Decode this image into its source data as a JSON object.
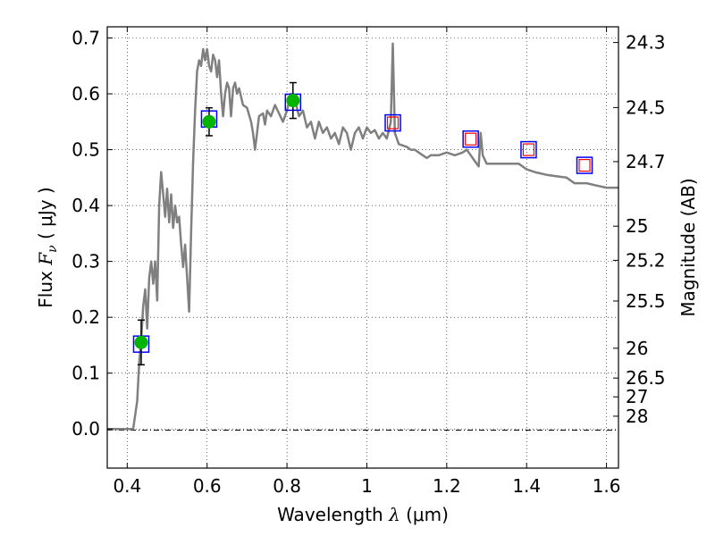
{
  "chart_data": {
    "type": "line",
    "xlabel": {
      "prefix": "Wavelength",
      "symbol": "λ",
      "unit": "(μm)"
    },
    "ylabel": {
      "prefix": "Flux",
      "symbol": "F",
      "sub": "ν",
      "unit": "( μJy )"
    },
    "y2label": "Magnitude (AB)",
    "xlim": [
      0.35,
      1.63
    ],
    "ylim": [
      -0.07,
      0.72
    ],
    "grid": true,
    "x_ticks": [
      {
        "value": 0.4,
        "label": "0.4"
      },
      {
        "value": 0.6,
        "label": "0.6"
      },
      {
        "value": 0.8,
        "label": "0.8"
      },
      {
        "value": 1.0,
        "label": "1"
      },
      {
        "value": 1.2,
        "label": "1.2"
      },
      {
        "value": 1.4,
        "label": "1.4"
      },
      {
        "value": 1.6,
        "label": "1.6"
      }
    ],
    "y_ticks": [
      {
        "value": 0.0,
        "label": "0.0"
      },
      {
        "value": 0.1,
        "label": "0.1"
      },
      {
        "value": 0.2,
        "label": "0.2"
      },
      {
        "value": 0.3,
        "label": "0.3"
      },
      {
        "value": 0.4,
        "label": "0.4"
      },
      {
        "value": 0.5,
        "label": "0.5"
      },
      {
        "value": 0.6,
        "label": "0.6"
      },
      {
        "value": 0.7,
        "label": "0.7"
      }
    ],
    "y2_ticks": [
      {
        "value": 24.3,
        "label": "24.3"
      },
      {
        "value": 24.5,
        "label": "24.5"
      },
      {
        "value": 24.7,
        "label": "24.7"
      },
      {
        "value": 25.0,
        "label": "25"
      },
      {
        "value": 25.2,
        "label": "25.2"
      },
      {
        "value": 25.5,
        "label": "25.5"
      },
      {
        "value": 26.0,
        "label": "26"
      },
      {
        "value": 26.5,
        "label": "26.5"
      },
      {
        "value": 27.0,
        "label": "27"
      },
      {
        "value": 28.0,
        "label": "28"
      }
    ],
    "model_spectrum": {
      "color": "#808080",
      "points": [
        [
          0.35,
          0.0
        ],
        [
          0.415,
          0.0
        ],
        [
          0.425,
          0.05
        ],
        [
          0.43,
          0.12
        ],
        [
          0.435,
          0.16
        ],
        [
          0.44,
          0.22
        ],
        [
          0.445,
          0.25
        ],
        [
          0.45,
          0.18
        ],
        [
          0.455,
          0.27
        ],
        [
          0.46,
          0.3
        ],
        [
          0.465,
          0.26
        ],
        [
          0.47,
          0.3
        ],
        [
          0.475,
          0.23
        ],
        [
          0.48,
          0.4
        ],
        [
          0.485,
          0.46
        ],
        [
          0.49,
          0.42
        ],
        [
          0.495,
          0.38
        ],
        [
          0.5,
          0.43
        ],
        [
          0.505,
          0.37
        ],
        [
          0.51,
          0.42
        ],
        [
          0.515,
          0.36
        ],
        [
          0.52,
          0.4
        ],
        [
          0.525,
          0.37
        ],
        [
          0.53,
          0.38
        ],
        [
          0.535,
          0.33
        ],
        [
          0.54,
          0.29
        ],
        [
          0.545,
          0.33
        ],
        [
          0.55,
          0.27
        ],
        [
          0.555,
          0.21
        ],
        [
          0.56,
          0.35
        ],
        [
          0.565,
          0.48
        ],
        [
          0.57,
          0.57
        ],
        [
          0.575,
          0.64
        ],
        [
          0.58,
          0.66
        ],
        [
          0.585,
          0.65
        ],
        [
          0.59,
          0.68
        ],
        [
          0.595,
          0.66
        ],
        [
          0.6,
          0.68
        ],
        [
          0.605,
          0.65
        ],
        [
          0.61,
          0.64
        ],
        [
          0.615,
          0.67
        ],
        [
          0.62,
          0.66
        ],
        [
          0.625,
          0.63
        ],
        [
          0.63,
          0.66
        ],
        [
          0.635,
          0.6
        ],
        [
          0.64,
          0.56
        ],
        [
          0.645,
          0.6
        ],
        [
          0.65,
          0.62
        ],
        [
          0.655,
          0.61
        ],
        [
          0.66,
          0.56
        ],
        [
          0.665,
          0.61
        ],
        [
          0.67,
          0.62
        ],
        [
          0.675,
          0.6
        ],
        [
          0.68,
          0.61
        ],
        [
          0.69,
          0.58
        ],
        [
          0.7,
          0.575
        ],
        [
          0.71,
          0.55
        ],
        [
          0.715,
          0.53
        ],
        [
          0.72,
          0.5
        ],
        [
          0.725,
          0.53
        ],
        [
          0.73,
          0.56
        ],
        [
          0.74,
          0.565
        ],
        [
          0.745,
          0.545
        ],
        [
          0.75,
          0.57
        ],
        [
          0.76,
          0.56
        ],
        [
          0.77,
          0.58
        ],
        [
          0.78,
          0.565
        ],
        [
          0.79,
          0.55
        ],
        [
          0.8,
          0.57
        ],
        [
          0.81,
          0.6
        ],
        [
          0.82,
          0.59
        ],
        [
          0.83,
          0.56
        ],
        [
          0.84,
          0.57
        ],
        [
          0.85,
          0.54
        ],
        [
          0.86,
          0.55
        ],
        [
          0.87,
          0.52
        ],
        [
          0.88,
          0.55
        ],
        [
          0.89,
          0.53
        ],
        [
          0.9,
          0.54
        ],
        [
          0.91,
          0.52
        ],
        [
          0.92,
          0.53
        ],
        [
          0.93,
          0.51
        ],
        [
          0.94,
          0.54
        ],
        [
          0.95,
          0.53
        ],
        [
          0.96,
          0.5
        ],
        [
          0.97,
          0.53
        ],
        [
          0.98,
          0.54
        ],
        [
          0.99,
          0.52
        ],
        [
          1.0,
          0.54
        ],
        [
          1.01,
          0.53
        ],
        [
          1.02,
          0.535
        ],
        [
          1.03,
          0.52
        ],
        [
          1.04,
          0.53
        ],
        [
          1.05,
          0.52
        ],
        [
          1.06,
          0.55
        ],
        [
          1.065,
          0.69
        ],
        [
          1.07,
          0.53
        ],
        [
          1.08,
          0.51
        ],
        [
          1.1,
          0.505
        ],
        [
          1.11,
          0.5
        ],
        [
          1.12,
          0.5
        ],
        [
          1.14,
          0.49
        ],
        [
          1.15,
          0.485
        ],
        [
          1.16,
          0.49
        ],
        [
          1.18,
          0.49
        ],
        [
          1.2,
          0.495
        ],
        [
          1.22,
          0.49
        ],
        [
          1.24,
          0.495
        ],
        [
          1.25,
          0.5
        ],
        [
          1.26,
          0.49
        ],
        [
          1.27,
          0.48
        ],
        [
          1.28,
          0.47
        ],
        [
          1.285,
          0.53
        ],
        [
          1.29,
          0.49
        ],
        [
          1.3,
          0.475
        ],
        [
          1.32,
          0.475
        ],
        [
          1.34,
          0.475
        ],
        [
          1.36,
          0.475
        ],
        [
          1.38,
          0.475
        ],
        [
          1.4,
          0.465
        ],
        [
          1.42,
          0.46
        ],
        [
          1.45,
          0.455
        ],
        [
          1.48,
          0.452
        ],
        [
          1.5,
          0.45
        ],
        [
          1.52,
          0.44
        ],
        [
          1.55,
          0.44
        ],
        [
          1.58,
          0.435
        ],
        [
          1.6,
          0.432
        ],
        [
          1.63,
          0.432
        ]
      ]
    },
    "observed_points": {
      "color": "#00b400",
      "points": [
        {
          "x": 0.435,
          "y": 0.155,
          "err": 0.04
        },
        {
          "x": 0.605,
          "y": 0.55,
          "err": 0.025
        },
        {
          "x": 0.815,
          "y": 0.588,
          "err": 0.032
        }
      ]
    },
    "synthetic_boxes": {
      "color": "#0000ff",
      "points": [
        {
          "x": 0.435,
          "y": 0.152
        },
        {
          "x": 0.605,
          "y": 0.555
        },
        {
          "x": 0.815,
          "y": 0.585
        },
        {
          "x": 1.065,
          "y": 0.548
        },
        {
          "x": 1.26,
          "y": 0.519
        },
        {
          "x": 1.405,
          "y": 0.5
        },
        {
          "x": 1.545,
          "y": 0.472
        }
      ]
    },
    "red_boxes": {
      "color": "#ff0000",
      "points": [
        {
          "x": 1.065,
          "y": 0.548
        },
        {
          "x": 1.26,
          "y": 0.519
        },
        {
          "x": 1.405,
          "y": 0.5
        },
        {
          "x": 1.545,
          "y": 0.472
        }
      ]
    }
  }
}
